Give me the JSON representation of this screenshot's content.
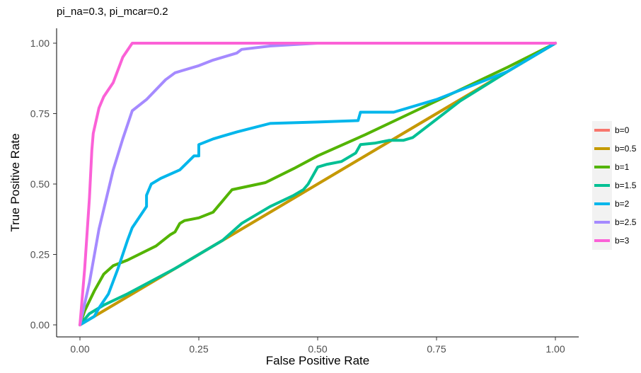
{
  "chart_data": {
    "type": "line",
    "title": "pi_na=0.3, pi_mcar=0.2",
    "xlabel": "False Positive Rate",
    "ylabel": "True Positive Rate",
    "xlim": [
      0,
      1
    ],
    "ylim": [
      0,
      1
    ],
    "x_ticks": [
      "0.00",
      "0.25",
      "0.50",
      "0.75",
      "1.00"
    ],
    "y_ticks": [
      "0.00",
      "0.25",
      "0.50",
      "0.75",
      "1.00"
    ],
    "grid": false,
    "legend_position": "right",
    "series": [
      {
        "name": "b=0",
        "color": "#F8766D",
        "points": [
          [
            0,
            0
          ],
          [
            1,
            1
          ]
        ]
      },
      {
        "name": "b=0.5",
        "color": "#C49A00",
        "points": [
          [
            0,
            0
          ],
          [
            1,
            1
          ]
        ]
      },
      {
        "name": "b=1",
        "color": "#53B400",
        "points": [
          [
            0,
            0
          ],
          [
            0.01,
            0.05
          ],
          [
            0.03,
            0.12
          ],
          [
            0.05,
            0.18
          ],
          [
            0.07,
            0.21
          ],
          [
            0.1,
            0.23
          ],
          [
            0.16,
            0.28
          ],
          [
            0.19,
            0.32
          ],
          [
            0.2,
            0.33
          ],
          [
            0.21,
            0.36
          ],
          [
            0.22,
            0.37
          ],
          [
            0.25,
            0.38
          ],
          [
            0.28,
            0.4
          ],
          [
            0.29,
            0.42
          ],
          [
            0.3,
            0.44
          ],
          [
            0.31,
            0.46
          ],
          [
            0.32,
            0.48
          ],
          [
            0.39,
            0.505
          ],
          [
            0.45,
            0.555
          ],
          [
            0.5,
            0.6
          ],
          [
            0.6,
            0.675
          ],
          [
            0.7,
            0.755
          ],
          [
            0.8,
            0.835
          ],
          [
            0.9,
            0.915
          ],
          [
            1,
            1
          ]
        ]
      },
      {
        "name": "b=1.5",
        "color": "#00C094",
        "points": [
          [
            0,
            0
          ],
          [
            0.02,
            0.04
          ],
          [
            0.05,
            0.07
          ],
          [
            0.1,
            0.11
          ],
          [
            0.15,
            0.155
          ],
          [
            0.2,
            0.2
          ],
          [
            0.25,
            0.25
          ],
          [
            0.3,
            0.3
          ],
          [
            0.32,
            0.33
          ],
          [
            0.34,
            0.36
          ],
          [
            0.35,
            0.37
          ],
          [
            0.4,
            0.42
          ],
          [
            0.45,
            0.46
          ],
          [
            0.47,
            0.48
          ],
          [
            0.48,
            0.5
          ],
          [
            0.49,
            0.53
          ],
          [
            0.5,
            0.56
          ],
          [
            0.52,
            0.57
          ],
          [
            0.55,
            0.58
          ],
          [
            0.58,
            0.61
          ],
          [
            0.59,
            0.64
          ],
          [
            0.62,
            0.645
          ],
          [
            0.65,
            0.655
          ],
          [
            0.68,
            0.655
          ],
          [
            0.7,
            0.665
          ],
          [
            0.75,
            0.73
          ],
          [
            0.8,
            0.795
          ],
          [
            0.9,
            0.9
          ],
          [
            1,
            1
          ]
        ]
      },
      {
        "name": "b=2",
        "color": "#00B6EB",
        "points": [
          [
            0,
            0
          ],
          [
            0.03,
            0.03
          ],
          [
            0.04,
            0.06
          ],
          [
            0.06,
            0.11
          ],
          [
            0.08,
            0.2
          ],
          [
            0.1,
            0.3
          ],
          [
            0.11,
            0.345
          ],
          [
            0.14,
            0.42
          ],
          [
            0.14,
            0.46
          ],
          [
            0.15,
            0.5
          ],
          [
            0.17,
            0.52
          ],
          [
            0.21,
            0.55
          ],
          [
            0.24,
            0.6
          ],
          [
            0.25,
            0.6
          ],
          [
            0.25,
            0.64
          ],
          [
            0.28,
            0.66
          ],
          [
            0.3,
            0.67
          ],
          [
            0.33,
            0.685
          ],
          [
            0.4,
            0.715
          ],
          [
            0.5,
            0.72
          ],
          [
            0.585,
            0.725
          ],
          [
            0.59,
            0.755
          ],
          [
            0.66,
            0.755
          ],
          [
            0.75,
            0.8
          ],
          [
            0.9,
            0.9
          ],
          [
            1,
            1
          ]
        ]
      },
      {
        "name": "b=2.5",
        "color": "#A58AFF",
        "points": [
          [
            0,
            0
          ],
          [
            0.02,
            0.15
          ],
          [
            0.04,
            0.34
          ],
          [
            0.06,
            0.48
          ],
          [
            0.07,
            0.55
          ],
          [
            0.09,
            0.66
          ],
          [
            0.11,
            0.76
          ],
          [
            0.14,
            0.8
          ],
          [
            0.18,
            0.87
          ],
          [
            0.2,
            0.895
          ],
          [
            0.25,
            0.92
          ],
          [
            0.28,
            0.94
          ],
          [
            0.33,
            0.965
          ],
          [
            0.34,
            0.978
          ],
          [
            0.4,
            0.99
          ],
          [
            0.5,
            1
          ],
          [
            1,
            1
          ]
        ]
      },
      {
        "name": "b=3",
        "color": "#FB61D7",
        "points": [
          [
            0,
            0
          ],
          [
            0.01,
            0.2
          ],
          [
            0.02,
            0.45
          ],
          [
            0.025,
            0.62
          ],
          [
            0.028,
            0.68
          ],
          [
            0.04,
            0.77
          ],
          [
            0.05,
            0.81
          ],
          [
            0.07,
            0.86
          ],
          [
            0.09,
            0.95
          ],
          [
            0.11,
            1
          ],
          [
            1,
            1
          ]
        ]
      }
    ]
  }
}
